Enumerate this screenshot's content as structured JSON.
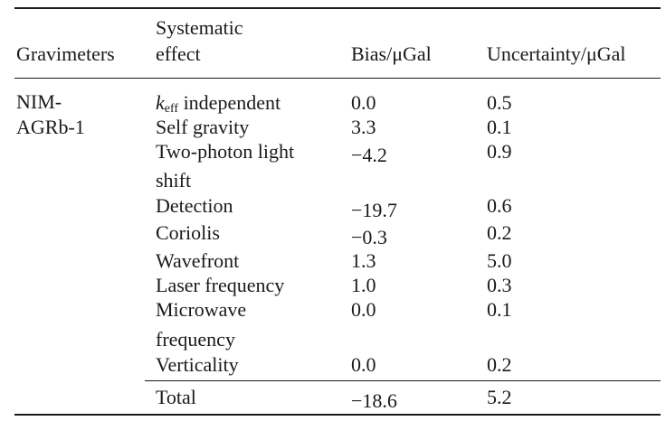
{
  "table": {
    "headers": {
      "gravimeters": "Gravimeters",
      "effect_line1": "Systematic",
      "effect_line2": "effect",
      "bias": "Bias/μGal",
      "uncertainty": "Uncertainty/μGal"
    },
    "gravimeter": {
      "line1": "NIM-",
      "line2": "AGRb-1"
    },
    "rows": [
      {
        "effect": "k",
        "effect_sub": "eff",
        "effect_rest": " independent",
        "bias": "0.0",
        "uncertainty": "0.5"
      },
      {
        "effect": "Self gravity",
        "bias": "3.3",
        "uncertainty": "0.1"
      },
      {
        "effect": "Two-photon light",
        "effect_line2": "shift",
        "bias": "−4.2",
        "uncertainty": "0.9"
      },
      {
        "effect": "Detection",
        "bias": "−19.7",
        "uncertainty": "0.6"
      },
      {
        "effect": "Coriolis",
        "bias": "−0.3",
        "uncertainty": "0.2"
      },
      {
        "effect": "Wavefront",
        "bias": "1.3",
        "uncertainty": "5.0"
      },
      {
        "effect": "Laser frequency",
        "bias": "1.0",
        "uncertainty": "0.3"
      },
      {
        "effect": "Microwave",
        "effect_line2": "frequency",
        "bias": "0.0",
        "uncertainty": "0.1"
      },
      {
        "effect": "Verticality",
        "bias": "0.0",
        "uncertainty": "0.2"
      }
    ],
    "total": {
      "label": "Total",
      "bias": "−18.6",
      "uncertainty": "5.2"
    }
  }
}
